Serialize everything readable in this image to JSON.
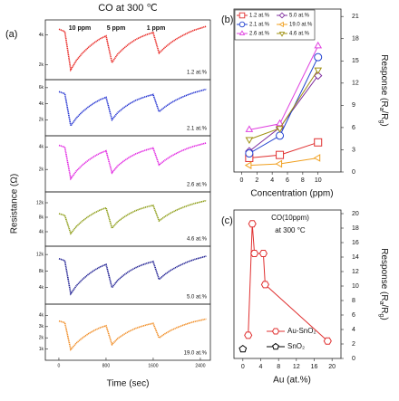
{
  "chart_data": [
    {
      "type": "line",
      "stacked": true,
      "panel_label": "(a)",
      "title": "CO at 300 ℃",
      "annotations": [
        "10 ppm",
        "5 ppm",
        "1 ppm"
      ],
      "x_label": "Time (sec)",
      "y_label": "Resistance (Ω)",
      "x": [
        0,
        100,
        200,
        300,
        400,
        500,
        600,
        700,
        800,
        900,
        1000,
        1100,
        1200,
        1300,
        1400,
        1500,
        1600,
        1700,
        1800,
        1900,
        2000,
        2100,
        2200,
        2300,
        2400,
        2500
      ],
      "xlim": [
        -230,
        2570
      ],
      "xticks": [
        0,
        800,
        1600,
        2400
      ],
      "series": [
        {
          "name": "1.2 at.%",
          "color": "#e8231f",
          "ylim": [
            1000,
            5000
          ],
          "yticks": [
            {
              "value": 2000,
              "label": "2k"
            },
            {
              "value": 4000,
              "label": "4k"
            }
          ],
          "values": [
            4380,
            4220,
            1660,
            2300,
            2780,
            3160,
            3480,
            3740,
            3930,
            2140,
            2720,
            3100,
            3420,
            3680,
            3870,
            4030,
            4160,
            2780,
            3160,
            3480,
            3740,
            3960,
            4160,
            4320,
            4440,
            4570
          ]
        },
        {
          "name": "2.1 at.%",
          "color": "#1f2fd0",
          "ylim": [
            0,
            7000
          ],
          "yticks": [
            {
              "value": 2000,
              "label": "2k"
            },
            {
              "value": 4000,
              "label": "4k"
            },
            {
              "value": 6000,
              "label": "6k"
            }
          ],
          "values": [
            5500,
            5250,
            1250,
            2250,
            3000,
            3600,
            4100,
            4500,
            4800,
            2000,
            2900,
            3500,
            4000,
            4400,
            4700,
            4950,
            5150,
            3000,
            3600,
            4100,
            4500,
            4850,
            5150,
            5400,
            5600,
            5800
          ]
        },
        {
          "name": "2.6 at.%",
          "color": "#e020e0",
          "ylim": [
            0,
            5000
          ],
          "yticks": [
            {
              "value": 2000,
              "label": "2k"
            },
            {
              "value": 4000,
              "label": "4k"
            }
          ],
          "values": [
            4150,
            3980,
            1180,
            1880,
            2400,
            2820,
            3170,
            3450,
            3660,
            1700,
            2330,
            2750,
            3100,
            3380,
            3590,
            3770,
            3910,
            2400,
            2820,
            3170,
            3450,
            3700,
            3910,
            4080,
            4220,
            4360
          ]
        },
        {
          "name": "4.6 at.%",
          "color": "#8a9a10",
          "ylim": [
            0,
            15000
          ],
          "yticks": [
            {
              "value": 4000,
              "label": "4k"
            },
            {
              "value": 8000,
              "label": "8k"
            },
            {
              "value": 12000,
              "label": "12k"
            }
          ],
          "values": [
            9000,
            8500,
            3500,
            5500,
            7000,
            8200,
            9200,
            10000,
            10600,
            5000,
            6800,
            8000,
            9000,
            9800,
            10400,
            10900,
            11300,
            7000,
            8200,
            9200,
            10000,
            10700,
            11300,
            11800,
            12200,
            12600
          ]
        },
        {
          "name": "5.0 at.%",
          "color": "#1a1a90",
          "ylim": [
            0,
            14000
          ],
          "yticks": [
            {
              "value": 4000,
              "label": "4k"
            },
            {
              "value": 8000,
              "label": "8k"
            },
            {
              "value": 12000,
              "label": "12k"
            }
          ],
          "values": [
            11000,
            10500,
            2500,
            4500,
            6000,
            7200,
            8200,
            9000,
            9600,
            4000,
            5800,
            7000,
            8000,
            8800,
            9400,
            9900,
            10300,
            6000,
            7200,
            8200,
            9000,
            9700,
            10300,
            10800,
            11200,
            11600
          ]
        },
        {
          "name": "19.0 at.%",
          "color": "#f08a20",
          "ylim": [
            0,
            5000
          ],
          "yticks": [
            {
              "value": 1000,
              "label": "1k"
            },
            {
              "value": 2000,
              "label": "2k"
            },
            {
              "value": 3000,
              "label": "3k"
            },
            {
              "value": 4000,
              "label": "4k"
            }
          ],
          "values": [
            3500,
            3350,
            950,
            1550,
            2000,
            2360,
            2660,
            2900,
            3080,
            1400,
            1940,
            2300,
            2600,
            2840,
            3020,
            3170,
            3290,
            2000,
            2360,
            2660,
            2900,
            3110,
            3290,
            3440,
            3560,
            3680
          ]
        }
      ]
    },
    {
      "type": "line",
      "panel_label": "(b)",
      "x_label": "Concentration (ppm)",
      "y_label_parts": [
        "Response (R",
        "a",
        "/R",
        "g",
        ")"
      ],
      "x": [
        1,
        5,
        10
      ],
      "xlim": [
        -1,
        13
      ],
      "xticks": [
        0,
        2,
        4,
        6,
        8,
        10
      ],
      "ylim": [
        0,
        22
      ],
      "yticks": [
        0,
        3,
        6,
        9,
        12,
        15,
        18,
        21
      ],
      "y_axis_position": "right",
      "legend_position": "top-left",
      "series": [
        {
          "name": "1.2 at.%",
          "color": "#e03030",
          "marker": "square",
          "values": [
            1.9,
            2.3,
            4.0
          ]
        },
        {
          "name": "5.0 at.%",
          "color": "#8030a0",
          "marker": "diamond",
          "values": [
            2.8,
            6.0,
            13.0
          ]
        },
        {
          "name": "2.1 at.%",
          "color": "#2040d0",
          "marker": "circle",
          "values": [
            2.5,
            4.9,
            15.5
          ]
        },
        {
          "name": "19.0 at.%",
          "color": "#f0a020",
          "marker": "triangle-left",
          "values": [
            0.9,
            1.1,
            1.9
          ]
        },
        {
          "name": "2.6 at.%",
          "color": "#e040e0",
          "marker": "triangle-up",
          "values": [
            5.7,
            6.5,
            17.0
          ]
        },
        {
          "name": "4.6 at.%",
          "color": "#a09010",
          "marker": "triangle-down",
          "values": [
            4.4,
            5.9,
            13.8
          ]
        }
      ]
    },
    {
      "type": "line",
      "panel_label": "(c)",
      "x_label": "Au (at.%)",
      "y_label_parts": [
        "Response (R",
        "a",
        "/R",
        "g",
        ")"
      ],
      "annotations": [
        "CO(10ppm)",
        "at 300 °C"
      ],
      "xlim": [
        -2,
        22
      ],
      "xticks": [
        0,
        4,
        8,
        12,
        16,
        20
      ],
      "ylim": [
        0,
        20.5
      ],
      "yticks": [
        0,
        2,
        4,
        6,
        8,
        10,
        12,
        14,
        16,
        18,
        20
      ],
      "y_axis_position": "right",
      "legend_position": "bottom-right",
      "series": [
        {
          "name": "Au-SnO₂",
          "color": "#e03030",
          "marker": "hexagon",
          "x": [
            1.2,
            2.1,
            2.6,
            4.6,
            5.0,
            19.0
          ],
          "values": [
            3.2,
            18.6,
            14.5,
            14.5,
            10.2,
            2.4
          ]
        },
        {
          "name": "SnO₂",
          "color": "#000000",
          "marker": "pentagon",
          "x": [
            0
          ],
          "values": [
            1.3
          ]
        }
      ]
    }
  ]
}
